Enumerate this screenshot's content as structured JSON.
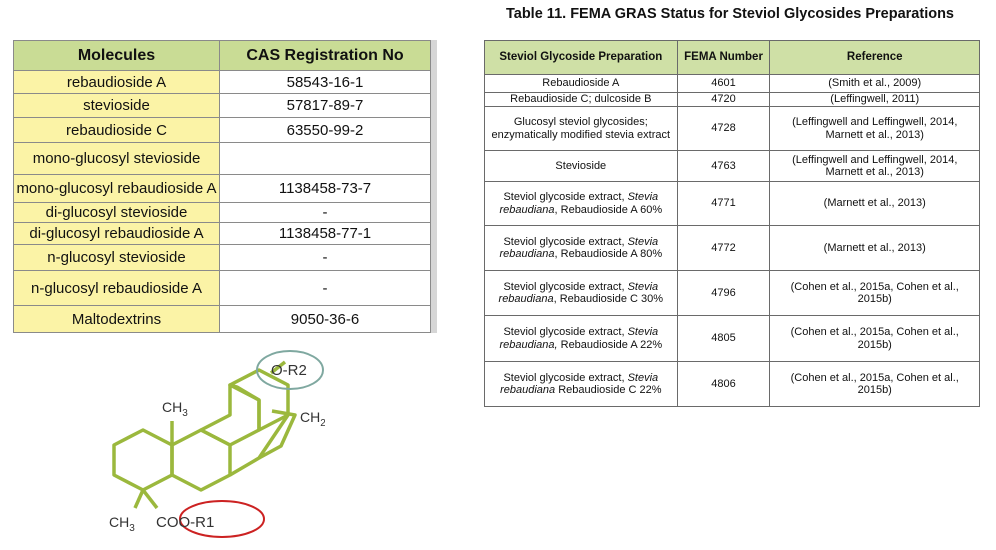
{
  "left_table": {
    "headers": [
      "Molecules",
      "CAS Registration No"
    ],
    "rows": [
      {
        "molecule": "rebaudioside A",
        "cas": "58543-16-1"
      },
      {
        "molecule": "stevioside",
        "cas": "57817-89-7"
      },
      {
        "molecule": "rebaudioside C",
        "cas": "63550-99-2"
      },
      {
        "molecule": "mono-glucosyl stevioside",
        "cas": ""
      },
      {
        "molecule": "mono-glucosyl rebaudioside A",
        "cas": "1138458-73-7"
      },
      {
        "molecule": "di-glucosyl stevioside",
        "cas": "-"
      },
      {
        "molecule": "di-glucosyl rebaudioside A",
        "cas": "1138458-77-1"
      },
      {
        "molecule": "n-glucosyl stevioside",
        "cas": "-"
      },
      {
        "molecule": "n-glucosyl rebaudioside A",
        "cas": "-"
      },
      {
        "molecule": "Maltodextrins",
        "cas": "9050-36-6"
      }
    ],
    "colors": {
      "header_bg": "#c9dc95",
      "name_bg": "#fbf3a6"
    }
  },
  "right_table": {
    "title": "Table 11. FEMA GRAS Status for Steviol Glycosides Preparations",
    "headers": [
      "Steviol Glycoside Preparation",
      "FEMA Number",
      "Reference"
    ],
    "rows": [
      {
        "prep_a": "Rebaudioside A",
        "prep_b": "",
        "prep_c": "",
        "fema": "4601",
        "ref": "(Smith et al., 2009)"
      },
      {
        "prep_a": "Rebaudioside C; dulcoside B",
        "prep_b": "",
        "prep_c": "",
        "fema": "4720",
        "ref": "(Leffingwell, 2011)"
      },
      {
        "prep_a": "Glucosyl steviol glycosides; enzymatically modified stevia extract",
        "prep_b": "",
        "prep_c": "",
        "fema": "4728",
        "ref": "(Leffingwell and Leffingwell, 2014, Marnett et al., 2013)"
      },
      {
        "prep_a": "Stevioside",
        "prep_b": "",
        "prep_c": "",
        "fema": "4763",
        "ref": "(Leffingwell and Leffingwell, 2014, Marnett et al., 2013)"
      },
      {
        "prep_a": "Steviol glycoside extract,",
        "prep_b": "Stevia rebaudiana",
        "prep_c": ", Rebaudioside A 60%",
        "fema": "4771",
        "ref": "(Marnett et al., 2013)"
      },
      {
        "prep_a": "Steviol glycoside extract,",
        "prep_b": "Stevia rebaudiana",
        "prep_c": ", Rebaudioside A 80%",
        "fema": "4772",
        "ref": "(Marnett et al., 2013)"
      },
      {
        "prep_a": "Steviol glycoside extract,",
        "prep_b": "Stevia rebaudiana",
        "prep_c": ", Rebaudioside C 30%",
        "fema": "4796",
        "ref": "(Cohen et al., 2015a, Cohen et al., 2015b)"
      },
      {
        "prep_a": "Steviol glycoside extract,",
        "prep_b": "Stevia rebaudiana,",
        "prep_c": "Rebaudioside A 22%",
        "fema": "4805",
        "ref": "(Cohen et al., 2015a, Cohen et al., 2015b)"
      },
      {
        "prep_a": "Steviol glycoside extract,",
        "prep_b": "Stevia rebaudiana",
        "prep_c": "Rebaudioside C 22%",
        "fema": "4806",
        "ref": "(Cohen et al., 2015a, Cohen et al., 2015b)"
      }
    ],
    "colors": {
      "header_bg": "#cfe0a6"
    }
  },
  "structure": {
    "ch3_top": "CH",
    "ch3_top_sub": "3",
    "ch2": "CH",
    "ch2_sub": "2",
    "or2": "O-R2",
    "ch3_bottom": "CH",
    "ch3_bottom_sub": "3",
    "coor1": "COO-R1",
    "colors": {
      "ring": "#9bb83d",
      "or2_ellipse": "#7fa8a0",
      "coor1_ellipse": "#cc2222"
    }
  }
}
